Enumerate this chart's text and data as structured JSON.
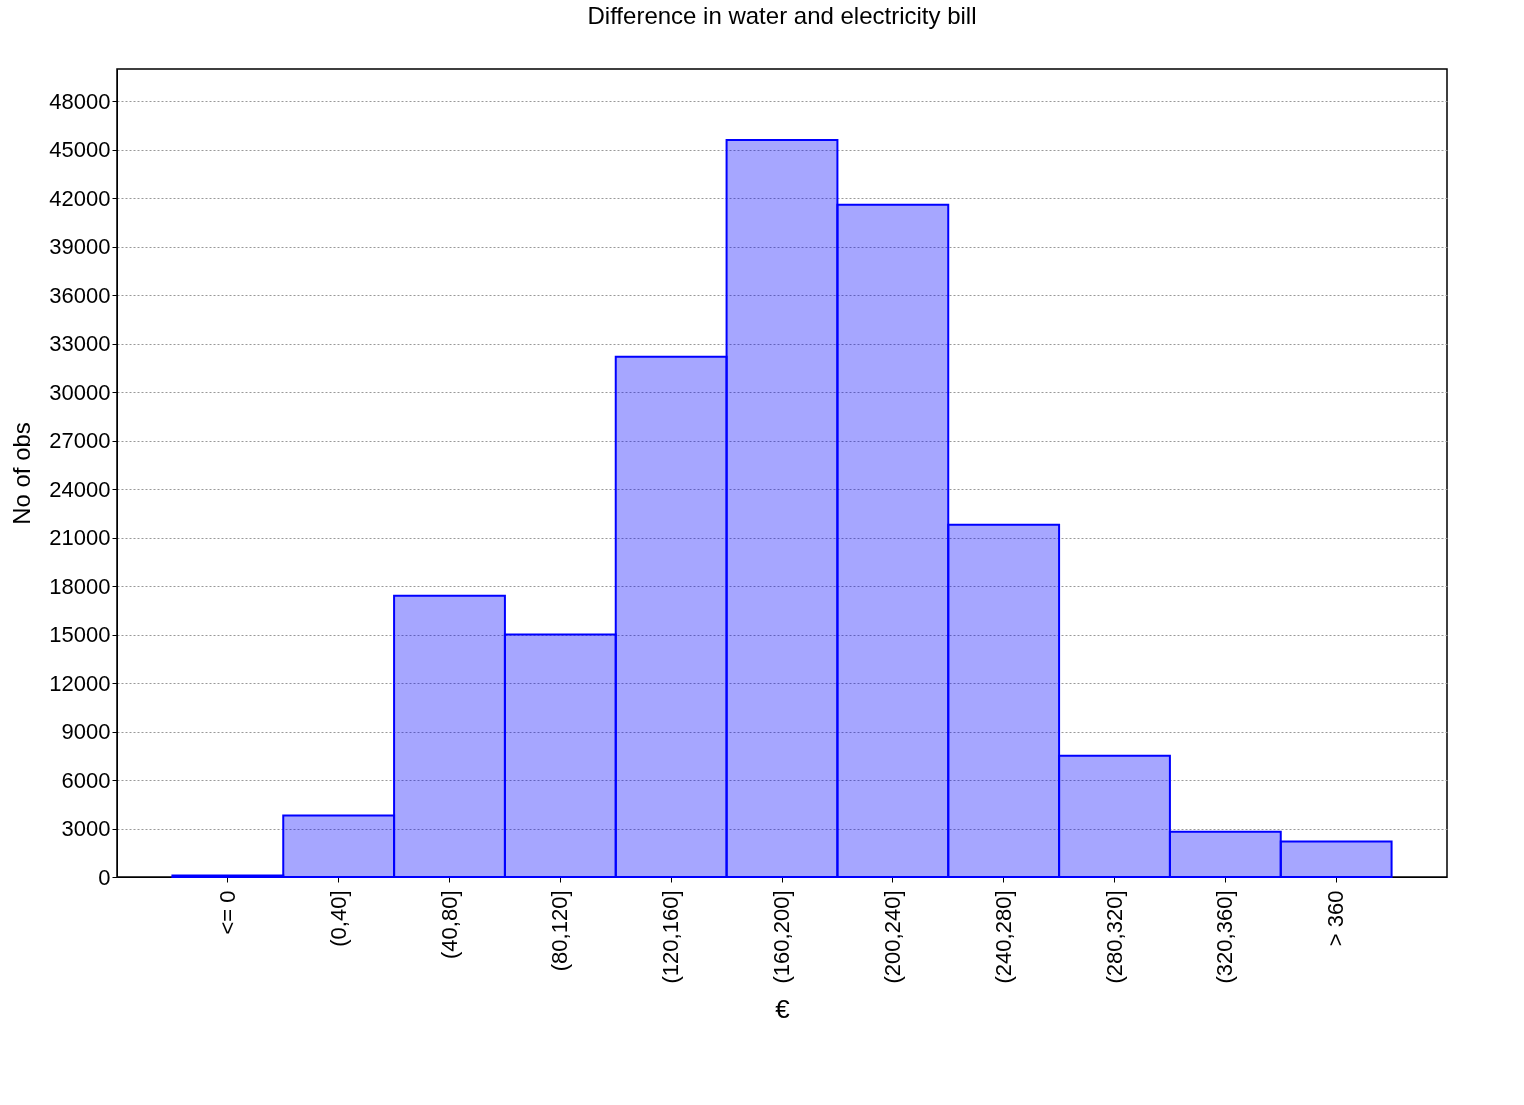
{
  "chart_data": {
    "type": "bar",
    "title": "Difference in water and electricity bill",
    "xlabel": "€",
    "ylabel": "No of obs",
    "categories": [
      "<= 0",
      "(0,40]",
      "(40,80]",
      "(80,120]",
      "(120,160]",
      "(160,200]",
      "(200,240]",
      "(240,280]",
      "(280,320]",
      "(320,360]",
      "> 360"
    ],
    "values": [
      100,
      3800,
      17400,
      15000,
      32200,
      45600,
      41600,
      21800,
      7500,
      2800,
      2200
    ],
    "color": "#0000ff",
    "ylim": [
      0,
      50000
    ],
    "yticks": [
      0,
      3000,
      6000,
      9000,
      12000,
      15000,
      18000,
      21000,
      24000,
      27000,
      30000,
      33000,
      36000,
      39000,
      42000,
      45000,
      48000
    ],
    "grid": "y"
  }
}
